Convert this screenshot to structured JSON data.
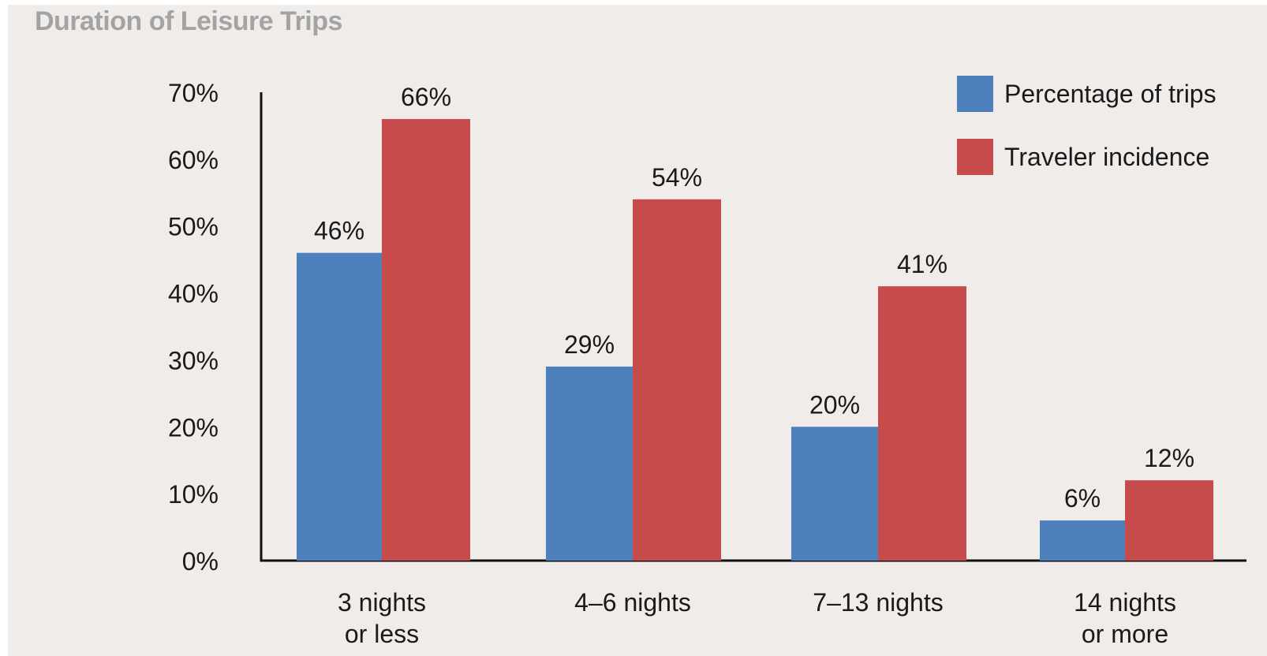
{
  "colors": {
    "background": "#f0ecea",
    "series_trips": "#4d80bd",
    "series_incidence": "#c84b4c",
    "title": "#a3a3a3",
    "axis": "#111111",
    "text": "#1a1a1a"
  },
  "chart_data": {
    "type": "bar",
    "title": "Duration of Leisure Trips",
    "xlabel": "",
    "ylabel": "",
    "ylim": [
      0,
      70
    ],
    "yticks": [
      0,
      10,
      20,
      30,
      40,
      50,
      60,
      70
    ],
    "yticks_format": "percent",
    "ytick_labels": [
      "0%",
      "10%",
      "20%",
      "30%",
      "40%",
      "50%",
      "60%",
      "70%"
    ],
    "grid": false,
    "legend_position": "top-right",
    "categories": [
      [
        "3 nights",
        "or less"
      ],
      [
        "4–6 nights"
      ],
      [
        "7–13 nights"
      ],
      [
        "14 nights",
        "or more"
      ]
    ],
    "series": [
      {
        "name": "Percentage of trips",
        "color": "#4d80bd",
        "values": [
          46,
          29,
          20,
          6
        ],
        "labels": [
          "46%",
          "29%",
          "20%",
          "6%"
        ]
      },
      {
        "name": "Traveler incidence",
        "color": "#c84b4c",
        "values": [
          66,
          54,
          41,
          12
        ],
        "labels": [
          "66%",
          "54%",
          "41%",
          "12%"
        ]
      }
    ]
  }
}
